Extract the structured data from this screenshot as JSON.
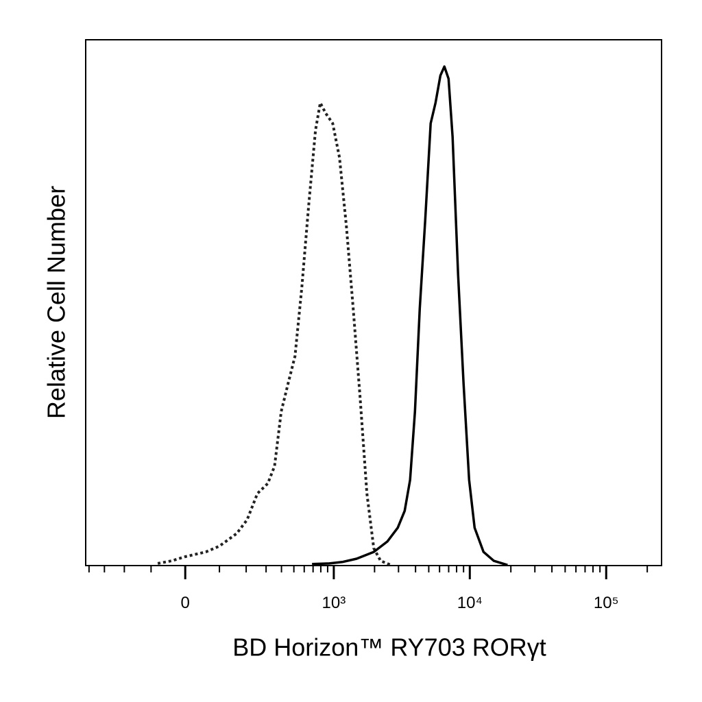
{
  "chart_data": {
    "type": "histogram-overlay",
    "xlabel": "BD Horizon™ RY703 RORγt",
    "ylabel": "Relative Cell Number",
    "xscale": "biexponential",
    "xlim": [
      -425,
      254600
    ],
    "ylim": [
      0,
      100
    ],
    "xticks": [
      0,
      {
        "value": 1000,
        "label": "10³"
      },
      {
        "value": 10000,
        "label": "10⁴"
      },
      {
        "value": 100000,
        "label": "10⁵"
      }
    ],
    "xminorticks": [
      -400,
      -300,
      -200,
      -100,
      100,
      200,
      300,
      400,
      500,
      600,
      700,
      800,
      900,
      2000,
      3000,
      4000,
      5000,
      6000,
      7000,
      8000,
      9000,
      20000,
      30000,
      40000,
      50000,
      60000,
      70000,
      80000,
      90000,
      200000
    ],
    "series": [
      {
        "color": "#222222",
        "dashed": true,
        "x": [
          -79,
          -38,
          0,
          58,
          100,
          161,
          204,
          253,
          310,
          352,
          398,
          451,
          510,
          575,
          648,
          730,
          793,
          872,
          981,
          1102,
          1240,
          1392,
          1565,
          1757,
          1974,
          2217,
          2639
        ],
        "values": [
          0.4,
          0.9,
          1.7,
          2.6,
          3.7,
          6.1,
          8.7,
          13.7,
          15.6,
          18.9,
          29.3,
          34.6,
          39.8,
          52.8,
          68.4,
          82.8,
          88.0,
          86.0,
          84.1,
          77.6,
          64.5,
          48.9,
          31.9,
          13.7,
          3.3,
          0.9,
          0.1
        ]
      },
      {
        "color": "#000000",
        "dashed": false,
        "x": [
          688,
          925,
          1170,
          1475,
          1974,
          2489,
          2962,
          3327,
          3648,
          3959,
          4294,
          4710,
          5166,
          5609,
          6084,
          6511,
          6986,
          7478,
          8200,
          9004,
          9889,
          10840,
          12612,
          14990,
          18893
        ],
        "values": [
          0.3,
          0.4,
          0.7,
          1.3,
          2.6,
          4.6,
          7.2,
          10.4,
          16.3,
          29.3,
          48.9,
          65.8,
          84.1,
          88.0,
          93.2,
          94.9,
          92.6,
          81.5,
          55.4,
          34.6,
          16.3,
          7.2,
          2.6,
          0.9,
          0.1
        ]
      }
    ]
  }
}
